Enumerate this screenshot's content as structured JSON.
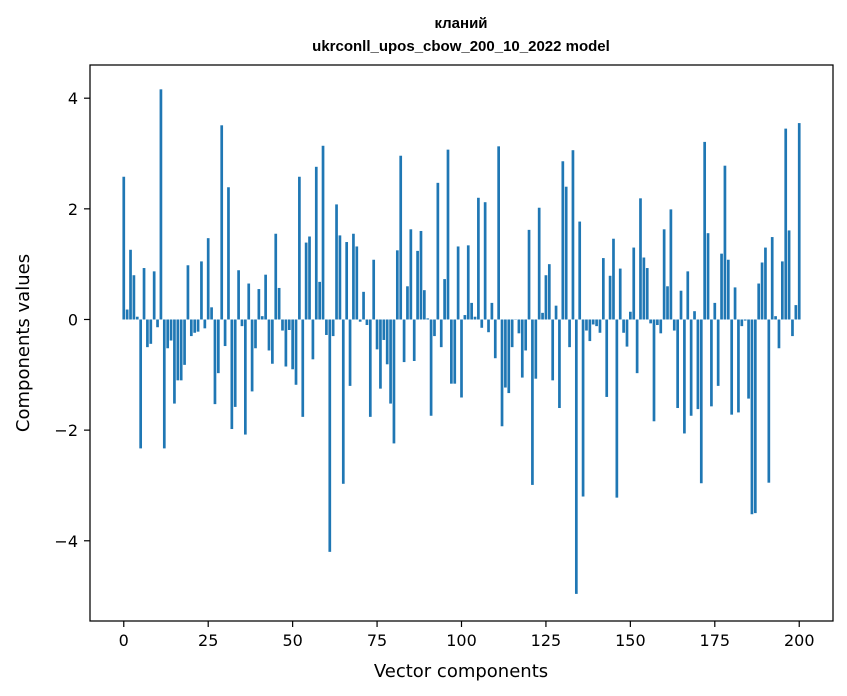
{
  "chart_data": {
    "type": "bar",
    "title": "кланий",
    "subtitle": "ukrconll_upos_cbow_200_10_2022 model",
    "xlabel": "Vector components",
    "ylabel": "Components values",
    "xlim": [
      -10,
      210
    ],
    "ylim": [
      -5.45,
      4.6
    ],
    "xticks": [
      0,
      25,
      50,
      75,
      100,
      125,
      150,
      175,
      200
    ],
    "xtick_labels": [
      "0",
      "25",
      "50",
      "75",
      "100",
      "125",
      "150",
      "175",
      "200"
    ],
    "yticks": [
      -4,
      -2,
      0,
      2,
      4
    ],
    "ytick_labels": [
      "−4",
      "−2",
      "0",
      "2",
      "4"
    ],
    "bar_color": "#1f77b4",
    "grid": false,
    "values": [
      2.58,
      0.18,
      1.26,
      0.8,
      0.05,
      -2.33,
      0.93,
      -0.5,
      -0.44,
      0.87,
      -0.14,
      4.16,
      -2.33,
      -0.52,
      -0.38,
      -1.52,
      -1.1,
      -1.1,
      -0.82,
      0.98,
      -0.3,
      -0.24,
      -0.22,
      1.05,
      -0.16,
      1.47,
      0.22,
      -1.53,
      -0.97,
      3.51,
      -0.48,
      2.39,
      -1.98,
      -1.58,
      0.89,
      -0.12,
      -2.08,
      0.65,
      -1.3,
      -0.52,
      0.55,
      0.06,
      0.81,
      -0.56,
      -0.8,
      1.55,
      0.57,
      -0.2,
      -0.85,
      -0.19,
      -0.9,
      -1.18,
      2.58,
      -1.76,
      1.39,
      1.5,
      -0.72,
      2.76,
      0.68,
      3.14,
      -0.28,
      -4.2,
      -0.3,
      2.08,
      1.52,
      -2.97,
      1.4,
      -1.2,
      1.55,
      1.32,
      -0.04,
      0.5,
      -0.1,
      -1.76,
      1.08,
      -0.54,
      -1.25,
      -0.37,
      -0.81,
      -1.52,
      -2.24,
      1.25,
      2.96,
      -0.77,
      0.6,
      1.63,
      -0.75,
      1.24,
      1.6,
      0.53,
      0.02,
      -1.74,
      -0.3,
      2.47,
      -0.5,
      0.73,
      3.07,
      -1.16,
      -1.16,
      1.32,
      -1.41,
      0.08,
      1.34,
      0.3,
      0.05,
      2.2,
      -0.15,
      2.12,
      -0.23,
      0.3,
      -0.7,
      3.13,
      -1.93,
      -1.23,
      -1.33,
      -0.5,
      0.0,
      -0.25,
      -1.05,
      -0.56,
      1.62,
      -2.99,
      -1.07,
      2.02,
      0.12,
      0.8,
      1.0,
      -1.1,
      0.25,
      -1.6,
      2.86,
      2.4,
      -0.5,
      3.06,
      -4.96,
      1.77,
      -3.2,
      -0.2,
      -0.39,
      -0.09,
      -0.12,
      -0.24,
      1.11,
      -1.4,
      0.79,
      1.46,
      -3.22,
      0.92,
      -0.24,
      -0.49,
      0.14,
      1.3,
      -0.97,
      2.19,
      1.12,
      0.93,
      -0.07,
      -1.84,
      -0.1,
      -0.25,
      1.63,
      0.6,
      1.99,
      -0.2,
      -1.6,
      0.52,
      -2.06,
      0.87,
      -1.74,
      0.15,
      -1.62,
      -2.96,
      3.21,
      1.56,
      -1.57,
      0.3,
      -1.2,
      1.19,
      2.78,
      1.08,
      -1.72,
      0.58,
      -1.68,
      -0.12,
      -0.02,
      -1.43,
      -3.52,
      -3.5,
      0.65,
      1.03,
      1.3,
      -2.95,
      1.49,
      0.06,
      -0.52,
      1.05,
      3.45,
      1.61,
      -0.3,
      0.26,
      3.55
    ]
  }
}
